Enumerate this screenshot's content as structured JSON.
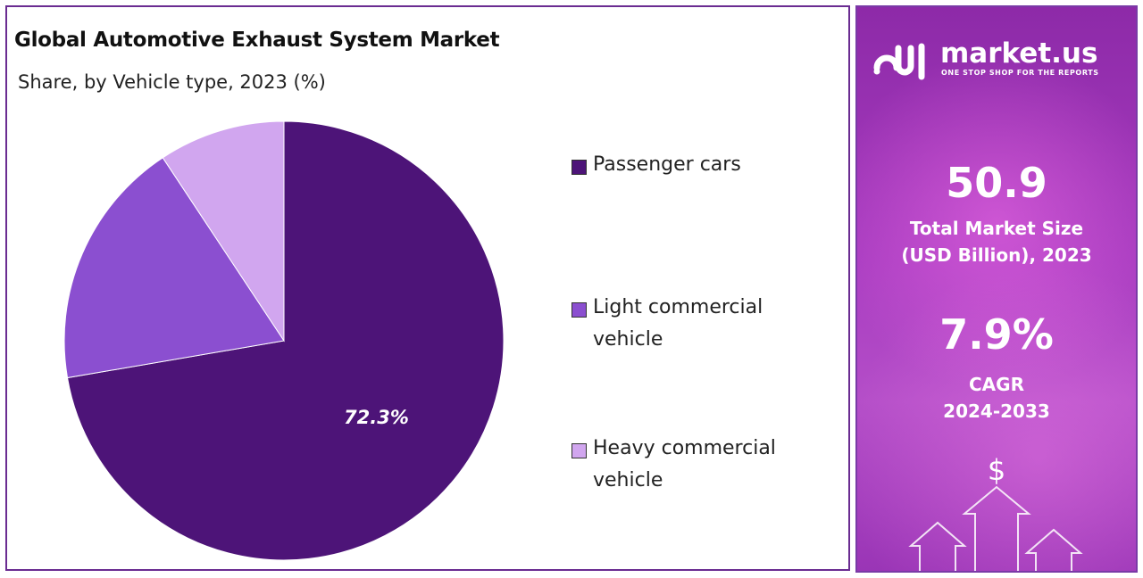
{
  "title": "Global Automotive Exhaust System Market",
  "subtitle": "Share, by Vehicle type, 2023 (%)",
  "chart_data": {
    "type": "pie",
    "categories": [
      "Passenger cars",
      "Light commercial vehicle",
      "Heavy commercial vehicle"
    ],
    "values": [
      72.3,
      18.4,
      9.3
    ],
    "colors": [
      "#4d1478",
      "#8b4fd0",
      "#d1a6ef"
    ],
    "data_labels": [
      "72.3%"
    ],
    "legend_position": "right"
  },
  "legend": [
    {
      "line1": "Passenger cars",
      "line2": ""
    },
    {
      "line1": "Light commercial",
      "line2": "vehicle"
    },
    {
      "line1": "Heavy commercial",
      "line2": "vehicle"
    }
  ],
  "side": {
    "logo_text": "market.us",
    "logo_tagline": "ONE STOP SHOP FOR THE REPORTS",
    "market_size": "50.9",
    "market_size_label_1": "Total Market Size",
    "market_size_label_2": "(USD Billion), 2023",
    "cagr": "7.9%",
    "cagr_label_1": "CAGR",
    "cagr_label_2": "2024-2033",
    "dollar_symbol": "$"
  }
}
